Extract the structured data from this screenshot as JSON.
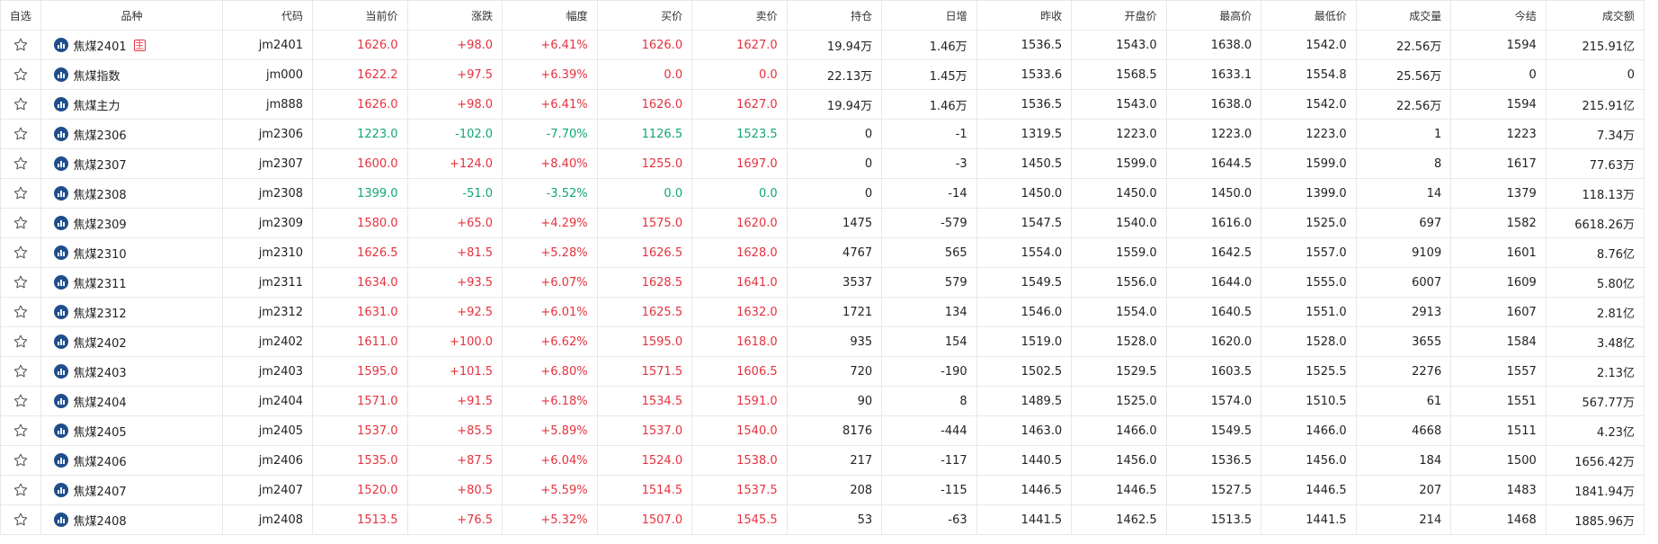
{
  "headers": [
    "自选",
    "品种",
    "代码",
    "当前价",
    "涨跌",
    "幅度",
    "买价",
    "卖价",
    "持仓",
    "日增",
    "昨收",
    "开盘价",
    "最高价",
    "最低价",
    "成交量",
    "今结",
    "成交额"
  ],
  "colors": {
    "up": "#e5323e",
    "down": "#0fa678",
    "text": "#222222",
    "icon_bg": "#1f4e8c"
  },
  "icons": {
    "watch": "star-outline-icon",
    "chart": "bar-chart-icon",
    "main_contract": "main-contract-badge"
  },
  "main_badge_label": "主",
  "rows": [
    {
      "name": "焦煤2401",
      "main": true,
      "code": "jm2401",
      "price": "1626.0",
      "chg": "+98.0",
      "pct": "+6.41%",
      "bid": "1626.0",
      "ask": "1627.0",
      "oi": "19.94万",
      "oi_chg": "1.46万",
      "prev": "1536.5",
      "open": "1543.0",
      "high": "1638.0",
      "low": "1542.0",
      "vol": "22.56万",
      "settle": "1594",
      "amount": "215.91亿",
      "dir": "up",
      "bid_dir": "up",
      "ask_dir": "up"
    },
    {
      "name": "焦煤指数",
      "main": false,
      "code": "jm000",
      "price": "1622.2",
      "chg": "+97.5",
      "pct": "+6.39%",
      "bid": "0.0",
      "ask": "0.0",
      "oi": "22.13万",
      "oi_chg": "1.45万",
      "prev": "1533.6",
      "open": "1568.5",
      "high": "1633.1",
      "low": "1554.8",
      "vol": "25.56万",
      "settle": "0",
      "amount": "0",
      "dir": "up",
      "bid_dir": "up",
      "ask_dir": "up"
    },
    {
      "name": "焦煤主力",
      "main": false,
      "code": "jm888",
      "price": "1626.0",
      "chg": "+98.0",
      "pct": "+6.41%",
      "bid": "1626.0",
      "ask": "1627.0",
      "oi": "19.94万",
      "oi_chg": "1.46万",
      "prev": "1536.5",
      "open": "1543.0",
      "high": "1638.0",
      "low": "1542.0",
      "vol": "22.56万",
      "settle": "1594",
      "amount": "215.91亿",
      "dir": "up",
      "bid_dir": "up",
      "ask_dir": "up"
    },
    {
      "name": "焦煤2306",
      "main": false,
      "code": "jm2306",
      "price": "1223.0",
      "chg": "-102.0",
      "pct": "-7.70%",
      "bid": "1126.5",
      "ask": "1523.5",
      "oi": "0",
      "oi_chg": "-1",
      "prev": "1319.5",
      "open": "1223.0",
      "high": "1223.0",
      "low": "1223.0",
      "vol": "1",
      "settle": "1223",
      "amount": "7.34万",
      "dir": "down",
      "bid_dir": "down",
      "ask_dir": "down"
    },
    {
      "name": "焦煤2307",
      "main": false,
      "code": "jm2307",
      "price": "1600.0",
      "chg": "+124.0",
      "pct": "+8.40%",
      "bid": "1255.0",
      "ask": "1697.0",
      "oi": "0",
      "oi_chg": "-3",
      "prev": "1450.5",
      "open": "1599.0",
      "high": "1644.5",
      "low": "1599.0",
      "vol": "8",
      "settle": "1617",
      "amount": "77.63万",
      "dir": "up",
      "bid_dir": "up",
      "ask_dir": "up"
    },
    {
      "name": "焦煤2308",
      "main": false,
      "code": "jm2308",
      "price": "1399.0",
      "chg": "-51.0",
      "pct": "-3.52%",
      "bid": "0.0",
      "ask": "0.0",
      "oi": "0",
      "oi_chg": "-14",
      "prev": "1450.0",
      "open": "1450.0",
      "high": "1450.0",
      "low": "1399.0",
      "vol": "14",
      "settle": "1379",
      "amount": "118.13万",
      "dir": "down",
      "bid_dir": "down",
      "ask_dir": "down"
    },
    {
      "name": "焦煤2309",
      "main": false,
      "code": "jm2309",
      "price": "1580.0",
      "chg": "+65.0",
      "pct": "+4.29%",
      "bid": "1575.0",
      "ask": "1620.0",
      "oi": "1475",
      "oi_chg": "-579",
      "prev": "1547.5",
      "open": "1540.0",
      "high": "1616.0",
      "low": "1525.0",
      "vol": "697",
      "settle": "1582",
      "amount": "6618.26万",
      "dir": "up",
      "bid_dir": "up",
      "ask_dir": "up"
    },
    {
      "name": "焦煤2310",
      "main": false,
      "code": "jm2310",
      "price": "1626.5",
      "chg": "+81.5",
      "pct": "+5.28%",
      "bid": "1626.5",
      "ask": "1628.0",
      "oi": "4767",
      "oi_chg": "565",
      "prev": "1554.0",
      "open": "1559.0",
      "high": "1642.5",
      "low": "1557.0",
      "vol": "9109",
      "settle": "1601",
      "amount": "8.76亿",
      "dir": "up",
      "bid_dir": "up",
      "ask_dir": "up"
    },
    {
      "name": "焦煤2311",
      "main": false,
      "code": "jm2311",
      "price": "1634.0",
      "chg": "+93.5",
      "pct": "+6.07%",
      "bid": "1628.5",
      "ask": "1641.0",
      "oi": "3537",
      "oi_chg": "579",
      "prev": "1549.5",
      "open": "1556.0",
      "high": "1644.0",
      "low": "1555.0",
      "vol": "6007",
      "settle": "1609",
      "amount": "5.80亿",
      "dir": "up",
      "bid_dir": "up",
      "ask_dir": "up"
    },
    {
      "name": "焦煤2312",
      "main": false,
      "code": "jm2312",
      "price": "1631.0",
      "chg": "+92.5",
      "pct": "+6.01%",
      "bid": "1625.5",
      "ask": "1632.0",
      "oi": "1721",
      "oi_chg": "134",
      "prev": "1546.0",
      "open": "1554.0",
      "high": "1640.5",
      "low": "1551.0",
      "vol": "2913",
      "settle": "1607",
      "amount": "2.81亿",
      "dir": "up",
      "bid_dir": "up",
      "ask_dir": "up"
    },
    {
      "name": "焦煤2402",
      "main": false,
      "code": "jm2402",
      "price": "1611.0",
      "chg": "+100.0",
      "pct": "+6.62%",
      "bid": "1595.0",
      "ask": "1618.0",
      "oi": "935",
      "oi_chg": "154",
      "prev": "1519.0",
      "open": "1528.0",
      "high": "1620.0",
      "low": "1528.0",
      "vol": "3655",
      "settle": "1584",
      "amount": "3.48亿",
      "dir": "up",
      "bid_dir": "up",
      "ask_dir": "up"
    },
    {
      "name": "焦煤2403",
      "main": false,
      "code": "jm2403",
      "price": "1595.0",
      "chg": "+101.5",
      "pct": "+6.80%",
      "bid": "1571.5",
      "ask": "1606.5",
      "oi": "720",
      "oi_chg": "-190",
      "prev": "1502.5",
      "open": "1529.5",
      "high": "1603.5",
      "low": "1525.5",
      "vol": "2276",
      "settle": "1557",
      "amount": "2.13亿",
      "dir": "up",
      "bid_dir": "up",
      "ask_dir": "up"
    },
    {
      "name": "焦煤2404",
      "main": false,
      "code": "jm2404",
      "price": "1571.0",
      "chg": "+91.5",
      "pct": "+6.18%",
      "bid": "1534.5",
      "ask": "1591.0",
      "oi": "90",
      "oi_chg": "8",
      "prev": "1489.5",
      "open": "1525.0",
      "high": "1574.0",
      "low": "1510.5",
      "vol": "61",
      "settle": "1551",
      "amount": "567.77万",
      "dir": "up",
      "bid_dir": "up",
      "ask_dir": "up"
    },
    {
      "name": "焦煤2405",
      "main": false,
      "code": "jm2405",
      "price": "1537.0",
      "chg": "+85.5",
      "pct": "+5.89%",
      "bid": "1537.0",
      "ask": "1540.0",
      "oi": "8176",
      "oi_chg": "-444",
      "prev": "1463.0",
      "open": "1466.0",
      "high": "1549.5",
      "low": "1466.0",
      "vol": "4668",
      "settle": "1511",
      "amount": "4.23亿",
      "dir": "up",
      "bid_dir": "up",
      "ask_dir": "up"
    },
    {
      "name": "焦煤2406",
      "main": false,
      "code": "jm2406",
      "price": "1535.0",
      "chg": "+87.5",
      "pct": "+6.04%",
      "bid": "1524.0",
      "ask": "1538.0",
      "oi": "217",
      "oi_chg": "-117",
      "prev": "1440.5",
      "open": "1456.0",
      "high": "1536.5",
      "low": "1456.0",
      "vol": "184",
      "settle": "1500",
      "amount": "1656.42万",
      "dir": "up",
      "bid_dir": "up",
      "ask_dir": "up"
    },
    {
      "name": "焦煤2407",
      "main": false,
      "code": "jm2407",
      "price": "1520.0",
      "chg": "+80.5",
      "pct": "+5.59%",
      "bid": "1514.5",
      "ask": "1537.5",
      "oi": "208",
      "oi_chg": "-115",
      "prev": "1446.5",
      "open": "1446.5",
      "high": "1527.5",
      "low": "1446.5",
      "vol": "207",
      "settle": "1483",
      "amount": "1841.94万",
      "dir": "up",
      "bid_dir": "up",
      "ask_dir": "up"
    },
    {
      "name": "焦煤2408",
      "main": false,
      "code": "jm2408",
      "price": "1513.5",
      "chg": "+76.5",
      "pct": "+5.32%",
      "bid": "1507.0",
      "ask": "1545.5",
      "oi": "53",
      "oi_chg": "-63",
      "prev": "1441.5",
      "open": "1462.5",
      "high": "1513.5",
      "low": "1441.5",
      "vol": "214",
      "settle": "1468",
      "amount": "1885.96万",
      "dir": "up",
      "bid_dir": "up",
      "ask_dir": "up"
    }
  ]
}
